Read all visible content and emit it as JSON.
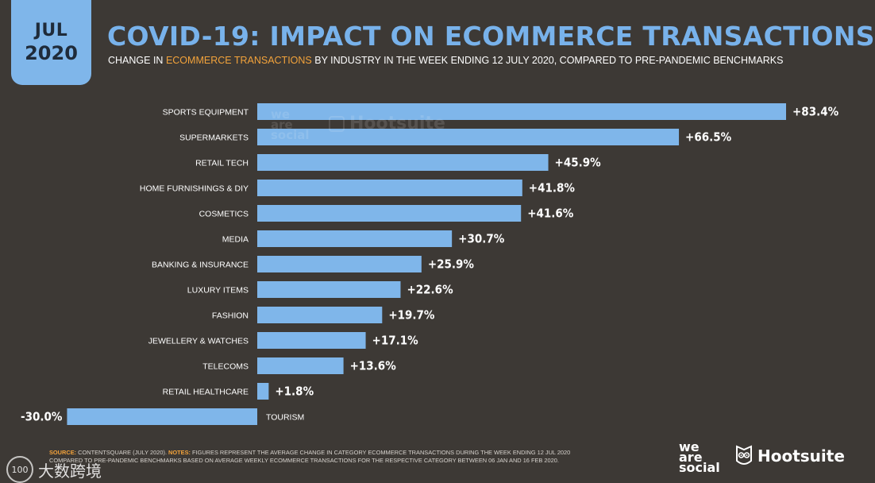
{
  "badge": {
    "month": "JUL",
    "year": "2020"
  },
  "title": "COVID-19: IMPACT ON ECOMMERCE TRANSACTIONS",
  "subtitle": {
    "pre": "CHANGE IN ",
    "highlight": "ECOMMERCE TRANSACTIONS",
    "post": " BY INDUSTRY IN THE WEEK ENDING 12 JULY 2020, COMPARED TO PRE-PANDEMIC BENCHMARKS"
  },
  "chart_data": {
    "type": "bar",
    "orientation": "horizontal",
    "categories": [
      "SPORTS EQUIPMENT",
      "SUPERMARKETS",
      "RETAIL TECH",
      "HOME FURNISHINGS & DIY",
      "COSMETICS",
      "MEDIA",
      "BANKING & INSURANCE",
      "LUXURY ITEMS",
      "FASHION",
      "JEWELLERY & WATCHES",
      "TELECOMS",
      "RETAIL HEALTHCARE",
      "TOURISM"
    ],
    "values": [
      83.4,
      66.5,
      45.9,
      41.8,
      41.6,
      30.7,
      25.9,
      22.6,
      19.7,
      17.1,
      13.6,
      1.8,
      -30.0
    ],
    "labels": [
      "+83.4%",
      "+66.5%",
      "+45.9%",
      "+41.8%",
      "+41.6%",
      "+30.7%",
      "+25.9%",
      "+22.6%",
      "+19.7%",
      "+17.1%",
      "+13.6%",
      "+1.8%",
      "-30.0%"
    ],
    "title": "COVID-19: IMPACT ON ECOMMERCE TRANSACTIONS",
    "xlabel": "",
    "ylabel": "",
    "grid": false,
    "bar_color": "#7fb6ea"
  },
  "watermark": {
    "line1": "we",
    "line2": "are",
    "line3": "social",
    "brand": "Hootsuite"
  },
  "footnote": {
    "source_label": "SOURCE:",
    "source_text": " CONTENTSQUARE (JULY 2020). ",
    "notes_label": "NOTES:",
    "notes_text": " FIGURES REPRESENT THE AVERAGE CHANGE IN CATEGORY ECOMMERCE TRANSACTIONS DURING THE WEEK ENDING 12 JUL 2020",
    "line2": "COMPARED TO PRE-PANDEMIC BENCHMARKS BASED ON AVERAGE WEEKLY ECOMMERCE TRANSACTIONS FOR THE RESPECTIVE CATEGORY BETWEEN 06 JAN AND 16 FEB 2020."
  },
  "logos": {
    "was_1": "we",
    "was_2": "are",
    "was_3": "social",
    "hootsuite": "Hootsuite"
  },
  "bottom_watermark": {
    "text": "大数跨境",
    "badge": "100"
  }
}
